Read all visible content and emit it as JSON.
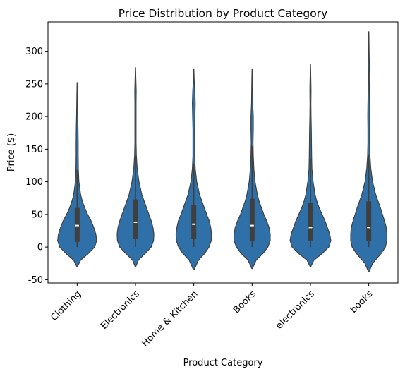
{
  "chart_data": {
    "type": "violin",
    "title": "Price Distribution by Product Category",
    "xlabel": "Product Category",
    "ylabel": "Price ($)",
    "ylim": [
      -55,
      345
    ],
    "yticks": [
      -50,
      0,
      50,
      100,
      150,
      200,
      250,
      300
    ],
    "grid": false,
    "color": "#2f70a8",
    "categories": [
      "Clothing",
      "Electronics",
      "Home & Kitchen",
      "Books",
      "electronics",
      "books"
    ],
    "violins": [
      {
        "category": "Clothing",
        "min": -30,
        "max": 252,
        "q1": 8,
        "median": 33,
        "q3": 60,
        "whisker_high": 118,
        "profile": [
          [
            -30,
            0.01
          ],
          [
            -20,
            0.12
          ],
          [
            -10,
            0.38
          ],
          [
            0,
            0.6
          ],
          [
            10,
            0.67
          ],
          [
            20,
            0.64
          ],
          [
            30,
            0.57
          ],
          [
            40,
            0.48
          ],
          [
            50,
            0.36
          ],
          [
            60,
            0.26
          ],
          [
            70,
            0.18
          ],
          [
            80,
            0.12
          ],
          [
            100,
            0.06
          ],
          [
            120,
            0.04
          ],
          [
            140,
            0.035
          ],
          [
            160,
            0.035
          ],
          [
            180,
            0.03
          ],
          [
            200,
            0.02
          ],
          [
            225,
            0.012
          ],
          [
            252,
            0.003
          ]
        ]
      },
      {
        "category": "Electronics",
        "min": -30,
        "max": 275,
        "q1": 12,
        "median": 38,
        "q3": 73,
        "whisker_high": 140,
        "profile": [
          [
            -30,
            0.01
          ],
          [
            -20,
            0.1
          ],
          [
            -10,
            0.33
          ],
          [
            0,
            0.54
          ],
          [
            10,
            0.62
          ],
          [
            20,
            0.63
          ],
          [
            30,
            0.6
          ],
          [
            40,
            0.54
          ],
          [
            50,
            0.46
          ],
          [
            60,
            0.38
          ],
          [
            70,
            0.3
          ],
          [
            80,
            0.22
          ],
          [
            100,
            0.12
          ],
          [
            120,
            0.06
          ],
          [
            140,
            0.03
          ],
          [
            160,
            0.02
          ],
          [
            180,
            0.02
          ],
          [
            200,
            0.02
          ],
          [
            220,
            0.02
          ],
          [
            240,
            0.025
          ],
          [
            255,
            0.015
          ],
          [
            275,
            0.003
          ]
        ]
      },
      {
        "category": "Home & Kitchen",
        "min": -35,
        "max": 272,
        "q1": 12,
        "median": 35,
        "q3": 64,
        "whisker_high": 128,
        "profile": [
          [
            -35,
            0.01
          ],
          [
            -20,
            0.16
          ],
          [
            -10,
            0.37
          ],
          [
            0,
            0.52
          ],
          [
            10,
            0.6
          ],
          [
            20,
            0.61
          ],
          [
            30,
            0.58
          ],
          [
            40,
            0.53
          ],
          [
            50,
            0.44
          ],
          [
            60,
            0.36
          ],
          [
            70,
            0.28
          ],
          [
            80,
            0.2
          ],
          [
            100,
            0.1
          ],
          [
            120,
            0.05
          ],
          [
            140,
            0.03
          ],
          [
            160,
            0.03
          ],
          [
            180,
            0.03
          ],
          [
            200,
            0.04
          ],
          [
            220,
            0.05
          ],
          [
            240,
            0.035
          ],
          [
            255,
            0.015
          ],
          [
            272,
            0.003
          ]
        ]
      },
      {
        "category": "Books",
        "min": -33,
        "max": 272,
        "q1": 10,
        "median": 33,
        "q3": 74,
        "whisker_high": 155,
        "profile": [
          [
            -33,
            0.01
          ],
          [
            -20,
            0.14
          ],
          [
            -10,
            0.37
          ],
          [
            0,
            0.54
          ],
          [
            10,
            0.62
          ],
          [
            20,
            0.62
          ],
          [
            30,
            0.58
          ],
          [
            40,
            0.5
          ],
          [
            50,
            0.4
          ],
          [
            60,
            0.32
          ],
          [
            70,
            0.24
          ],
          [
            80,
            0.18
          ],
          [
            100,
            0.1
          ],
          [
            120,
            0.06
          ],
          [
            140,
            0.04
          ],
          [
            160,
            0.03
          ],
          [
            180,
            0.04
          ],
          [
            200,
            0.04
          ],
          [
            220,
            0.02
          ],
          [
            240,
            0.015
          ],
          [
            255,
            0.01
          ],
          [
            272,
            0.003
          ]
        ]
      },
      {
        "category": "electronics",
        "min": -30,
        "max": 280,
        "q1": 10,
        "median": 30,
        "q3": 68,
        "whisker_high": 135,
        "profile": [
          [
            -30,
            0.01
          ],
          [
            -20,
            0.12
          ],
          [
            -10,
            0.4
          ],
          [
            0,
            0.63
          ],
          [
            10,
            0.7
          ],
          [
            20,
            0.66
          ],
          [
            30,
            0.58
          ],
          [
            40,
            0.5
          ],
          [
            50,
            0.4
          ],
          [
            60,
            0.3
          ],
          [
            70,
            0.22
          ],
          [
            80,
            0.16
          ],
          [
            100,
            0.09
          ],
          [
            120,
            0.05
          ],
          [
            140,
            0.04
          ],
          [
            160,
            0.035
          ],
          [
            180,
            0.03
          ],
          [
            200,
            0.02
          ],
          [
            220,
            0.015
          ],
          [
            240,
            0.02
          ],
          [
            260,
            0.012
          ],
          [
            280,
            0.003
          ]
        ]
      },
      {
        "category": "books",
        "min": -38,
        "max": 330,
        "q1": 10,
        "median": 30,
        "q3": 70,
        "whisker_high": 142,
        "profile": [
          [
            -38,
            0.01
          ],
          [
            -25,
            0.13
          ],
          [
            -10,
            0.42
          ],
          [
            0,
            0.57
          ],
          [
            10,
            0.62
          ],
          [
            20,
            0.62
          ],
          [
            30,
            0.6
          ],
          [
            40,
            0.54
          ],
          [
            50,
            0.47
          ],
          [
            60,
            0.4
          ],
          [
            70,
            0.32
          ],
          [
            80,
            0.24
          ],
          [
            100,
            0.13
          ],
          [
            120,
            0.07
          ],
          [
            140,
            0.04
          ],
          [
            160,
            0.03
          ],
          [
            180,
            0.03
          ],
          [
            200,
            0.035
          ],
          [
            220,
            0.03
          ],
          [
            240,
            0.02
          ],
          [
            260,
            0.015
          ],
          [
            280,
            0.02
          ],
          [
            300,
            0.012
          ],
          [
            330,
            0.003
          ]
        ]
      }
    ]
  }
}
